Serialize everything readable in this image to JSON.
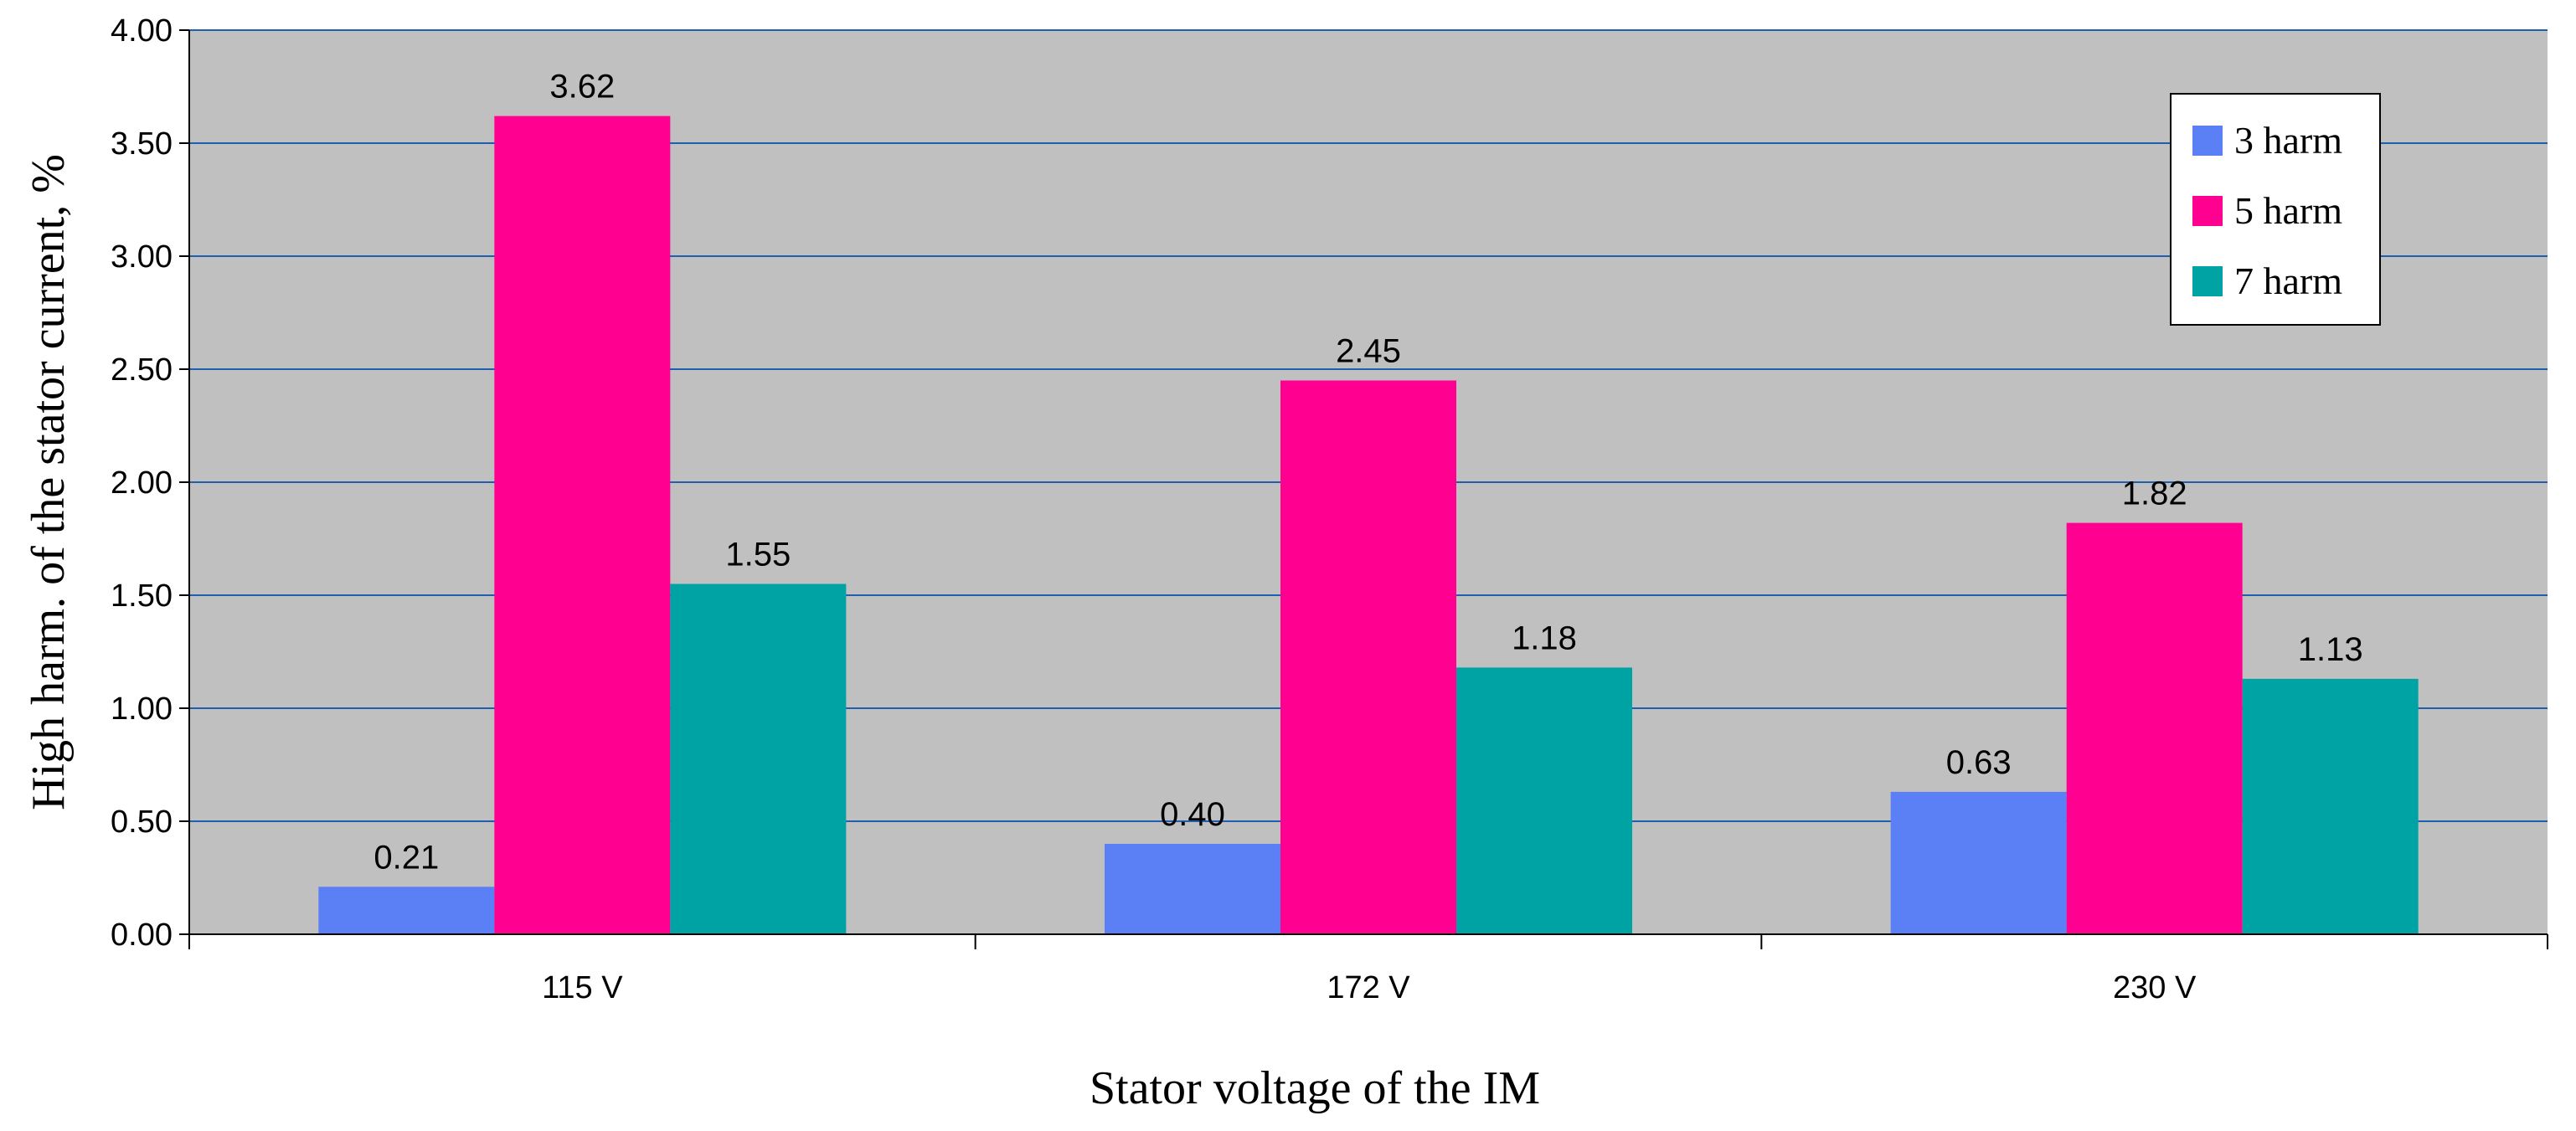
{
  "chart_data": {
    "type": "bar",
    "categories": [
      "115 V",
      "172 V",
      "230 V"
    ],
    "series": [
      {
        "name": "3 harm",
        "color": "#5b7ff5",
        "values": [
          0.21,
          0.4,
          0.63
        ]
      },
      {
        "name": "5 harm",
        "color": "#ff0090",
        "values": [
          3.62,
          2.45,
          1.82
        ]
      },
      {
        "name": "7 harm",
        "color": "#00a3a3",
        "values": [
          1.55,
          1.18,
          1.13
        ]
      }
    ],
    "data_labels": [
      [
        "0.21",
        "3.62",
        "1.55"
      ],
      [
        "0.40",
        "2.45",
        "1.18"
      ],
      [
        "0.63",
        "1.82",
        "1.13"
      ]
    ],
    "xlabel": "Stator voltage of the IM",
    "ylabel": "High harm. of the stator current, %",
    "ylim": [
      0,
      4
    ],
    "yticks": [
      "0.00",
      "0.50",
      "1.00",
      "1.50",
      "2.00",
      "2.50",
      "3.00",
      "3.50",
      "4.00"
    ],
    "grid": true,
    "legend_position": "top-right",
    "plot_background": "#c0c0c0",
    "gridline_color": "#1f5fb0"
  }
}
